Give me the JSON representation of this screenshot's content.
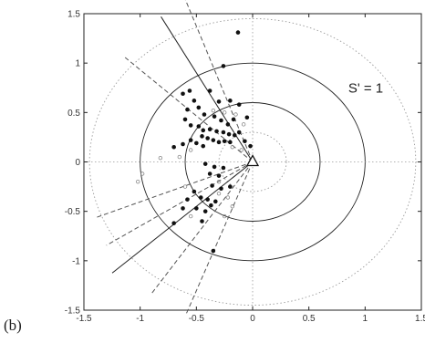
{
  "panel_label": "(b)",
  "chart_data": {
    "type": "scatter",
    "title": "",
    "xlabel": "",
    "ylabel": "",
    "xlim": [
      -1.5,
      1.5
    ],
    "ylim": [
      -1.5,
      1.5
    ],
    "grid": false,
    "x_ticks": [
      "-1.5",
      "-1",
      "-0.5",
      "0",
      "0.5",
      "1",
      "1.5"
    ],
    "y_ticks": [
      "1.5",
      "1",
      "0.5",
      "0",
      "-0.5",
      "-1",
      "-1.5"
    ],
    "annotation": {
      "text": "S' = 1",
      "x": 0.85,
      "y": 0.7
    },
    "origin_marker": {
      "shape": "triangle",
      "x": 0,
      "y": 0
    },
    "circles": [
      {
        "r": 0.3,
        "style": "dotted"
      },
      {
        "r": 0.6,
        "style": "solid"
      },
      {
        "r": 1.0,
        "style": "solid"
      },
      {
        "r": 1.45,
        "style": "dotted"
      }
    ],
    "rays": [
      {
        "angle_deg": 110,
        "length": 1.82,
        "style": "dashed"
      },
      {
        "angle_deg": 119,
        "length": 1.68,
        "style": "solid"
      },
      {
        "angle_deg": 137,
        "length": 1.55,
        "style": "dashed"
      },
      {
        "angle_deg": 202,
        "length": 1.5,
        "style": "dashed"
      },
      {
        "angle_deg": 213,
        "length": 1.55,
        "style": "dashed"
      },
      {
        "angle_deg": 222,
        "length": 1.68,
        "style": "solid"
      },
      {
        "angle_deg": 236,
        "length": 1.6,
        "style": "dashed"
      },
      {
        "angle_deg": 249,
        "length": 1.65,
        "style": "dashed"
      }
    ],
    "series": [
      {
        "marker": "filled",
        "points": [
          [
            -0.13,
            1.31
          ],
          [
            -0.26,
            0.97
          ],
          [
            -0.56,
            0.72
          ],
          [
            -0.62,
            0.69
          ],
          [
            -0.58,
            0.53
          ],
          [
            -0.52,
            0.62
          ],
          [
            -0.48,
            0.55
          ],
          [
            -0.38,
            0.72
          ],
          [
            -0.3,
            0.61
          ],
          [
            -0.2,
            0.62
          ],
          [
            -0.12,
            0.58
          ],
          [
            -0.05,
            0.45
          ],
          [
            -0.43,
            0.48
          ],
          [
            -0.34,
            0.46
          ],
          [
            -0.28,
            0.42
          ],
          [
            -0.22,
            0.38
          ],
          [
            -0.17,
            0.43
          ],
          [
            -0.6,
            0.43
          ],
          [
            -0.55,
            0.37
          ],
          [
            -0.48,
            0.36
          ],
          [
            -0.44,
            0.32
          ],
          [
            -0.38,
            0.33
          ],
          [
            -0.32,
            0.31
          ],
          [
            -0.26,
            0.3
          ],
          [
            -0.21,
            0.28
          ],
          [
            -0.16,
            0.27
          ],
          [
            -0.12,
            0.3
          ],
          [
            -0.45,
            0.26
          ],
          [
            -0.4,
            0.24
          ],
          [
            -0.35,
            0.22
          ],
          [
            -0.3,
            0.2
          ],
          [
            -0.25,
            0.21
          ],
          [
            -0.2,
            0.2
          ],
          [
            -0.55,
            0.22
          ],
          [
            -0.5,
            0.19
          ],
          [
            -0.44,
            0.16
          ],
          [
            -0.62,
            0.18
          ],
          [
            -0.7,
            0.15
          ],
          [
            -0.07,
            0.21
          ],
          [
            -0.02,
            0.16
          ],
          [
            -0.42,
            -0.02
          ],
          [
            -0.34,
            -0.05
          ],
          [
            -0.26,
            -0.06
          ],
          [
            -0.38,
            -0.12
          ],
          [
            -0.3,
            -0.14
          ],
          [
            -0.36,
            -0.24
          ],
          [
            -0.28,
            -0.27
          ],
          [
            -0.2,
            -0.25
          ],
          [
            -0.52,
            -0.3
          ],
          [
            -0.46,
            -0.36
          ],
          [
            -0.4,
            -0.38
          ],
          [
            -0.33,
            -0.4
          ],
          [
            -0.58,
            -0.38
          ],
          [
            -0.62,
            -0.47
          ],
          [
            -0.5,
            -0.47
          ],
          [
            -0.42,
            -0.5
          ],
          [
            -0.37,
            -0.44
          ],
          [
            -0.7,
            -0.62
          ],
          [
            -0.45,
            -0.6
          ],
          [
            -0.35,
            -0.9
          ]
        ]
      },
      {
        "marker": "hollow",
        "points": [
          [
            -0.15,
            0.48
          ],
          [
            -0.08,
            0.38
          ],
          [
            -0.35,
            0.52
          ],
          [
            -0.25,
            0.5
          ],
          [
            -0.1,
            0.12
          ],
          [
            -0.18,
            0.15
          ],
          [
            -0.55,
            0.12
          ],
          [
            -0.65,
            0.05
          ],
          [
            -0.82,
            0.04
          ],
          [
            -0.98,
            -0.12
          ],
          [
            -1.02,
            -0.2
          ],
          [
            -0.3,
            -0.2
          ],
          [
            -0.22,
            -0.36
          ],
          [
            -0.3,
            -0.32
          ],
          [
            -0.18,
            -0.45
          ],
          [
            -0.25,
            -0.55
          ],
          [
            -0.55,
            -0.55
          ],
          [
            -0.6,
            -0.25
          ]
        ]
      }
    ]
  }
}
